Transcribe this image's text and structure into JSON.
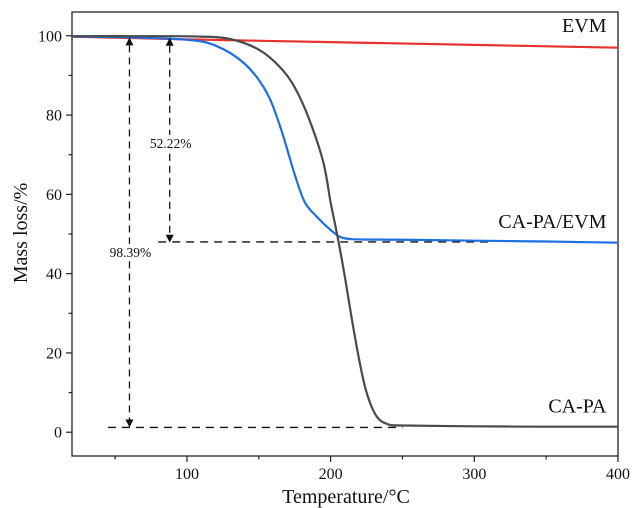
{
  "chart_data": {
    "type": "line",
    "xlabel": "Temperature/°C",
    "ylabel": "Mass loss/%",
    "xlim": [
      20,
      400
    ],
    "ylim": [
      -6,
      106
    ],
    "x_ticks": [
      100,
      200,
      300,
      400
    ],
    "y_ticks": [
      0,
      20,
      40,
      60,
      80,
      100
    ],
    "grid": false,
    "legend": "none",
    "series": [
      {
        "name": "EVM",
        "color": "#e8302c",
        "x": [
          20,
          100,
          200,
          300,
          400
        ],
        "y": [
          99.8,
          99.1,
          98.4,
          97.7,
          97.0
        ]
      },
      {
        "name": "CA-PA/EVM",
        "color": "#1f6fe0",
        "x": [
          20,
          60,
          100,
          120,
          140,
          155,
          165,
          175,
          182,
          190,
          200,
          207,
          215,
          230,
          260,
          300,
          350,
          400
        ],
        "y": [
          99.8,
          99.6,
          99.0,
          97.5,
          93,
          86,
          77,
          65,
          58,
          54.5,
          51,
          49.2,
          48.7,
          48.6,
          48.5,
          48.3,
          48.1,
          47.8
        ]
      },
      {
        "name": "CA-PA",
        "color": "#4a4a4a",
        "x": [
          20,
          80,
          110,
          130,
          150,
          165,
          175,
          185,
          195,
          200,
          205,
          210,
          215,
          220,
          225,
          232,
          240,
          250,
          300,
          350,
          400
        ],
        "y": [
          99.9,
          99.9,
          99.8,
          99.2,
          96.5,
          92,
          87,
          79,
          68,
          58,
          49,
          39,
          28,
          18,
          10,
          4,
          2,
          1.7,
          1.5,
          1.4,
          1.4
        ]
      }
    ],
    "annotations": [
      {
        "text": "52.22%",
        "x": 88,
        "y_top": 99.5,
        "y_bottom": 47.8,
        "label_y": 72
      },
      {
        "text": "98.39%",
        "x": 60,
        "y_top": 99.6,
        "y_bottom": 1.2,
        "label_y": 44.5
      }
    ],
    "reference_lines": [
      {
        "y": 48.0,
        "x_from": 80,
        "x_to": 310
      },
      {
        "y": 1.2,
        "x_from": 45,
        "x_to": 250
      }
    ],
    "series_labels": [
      {
        "text": "EVM",
        "x": 392,
        "y": 101
      },
      {
        "text": "CA-PA/EVM",
        "x": 392,
        "y": 51.5
      },
      {
        "text": "CA-PA",
        "x": 392,
        "y": 5
      }
    ]
  }
}
